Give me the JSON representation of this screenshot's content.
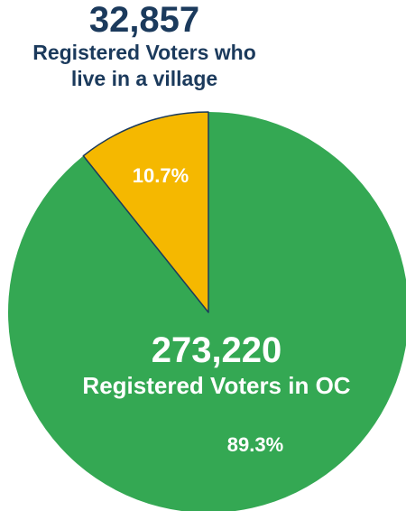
{
  "chart_data": {
    "type": "pie",
    "slices": [
      {
        "label": "Registered Voters who live in a village",
        "value": 32857,
        "percent": "10.7%",
        "color": "#f5b800"
      },
      {
        "label": "Registered Voters in OC",
        "value": 273220,
        "percent": "89.3%",
        "color": "#34a853"
      }
    ],
    "start": "12 o'clock",
    "direction": "counter-clockwise for first slice",
    "edge_color": "#1b3a5c"
  },
  "labels": {
    "village_value": "32,857",
    "village_label_line1": "Registered Voters who",
    "village_label_line2": "live in a village",
    "village_percent": "10.7%",
    "oc_value": "273,220",
    "oc_label": "Registered Voters in OC",
    "oc_percent": "89.3%"
  }
}
